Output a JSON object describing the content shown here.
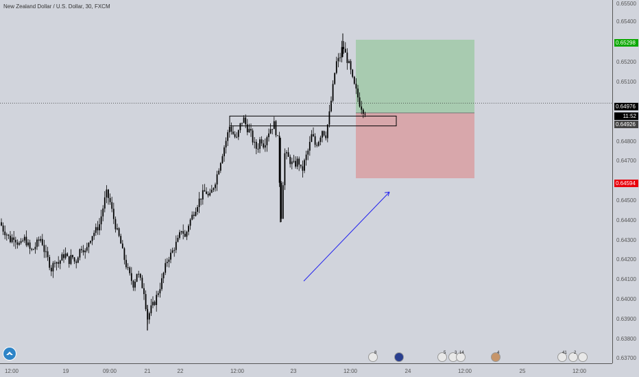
{
  "header": {
    "title": "New Zealand Dollar / U.S. Dollar, 30, FXCM"
  },
  "price_axis": {
    "ticks": [
      "0.65500",
      "0.65400",
      "0.65200",
      "0.65100",
      "0.64800",
      "0.64700",
      "0.64500",
      "0.64400",
      "0.64300",
      "0.64200",
      "0.64100",
      "0.64000",
      "0.63900",
      "0.63800",
      "0.63700"
    ],
    "tags": {
      "take_profit": "0.65298",
      "current": "0.64976",
      "countdown": "11:52",
      "entry": "0.64926",
      "stop_loss": "0.64594"
    }
  },
  "time_axis": {
    "labels": [
      "12:00",
      "19",
      "09:00",
      "21",
      "22",
      "12:00",
      "23",
      "12:00",
      "24",
      "12:00",
      "25",
      "12:00"
    ]
  },
  "events": {
    "e1": "8",
    "e3": "5",
    "e4": "3",
    "e5": "14",
    "e6": "4",
    "e7": "41",
    "e8": "2"
  },
  "colors": {
    "background": "#d1d4dc",
    "candle": "#000000",
    "take_profit_zone": "#a8cbb0",
    "stop_loss_zone": "#d8a7ab",
    "take_profit_tag": "#0ba800",
    "stop_loss_tag": "#e8000b",
    "price_tag": "#000000",
    "arrow": "#2222ee"
  },
  "chart_data": {
    "type": "candlestick",
    "instrument": "New Zealand Dollar / U.S. Dollar",
    "timeframe": "30",
    "source": "FXCM",
    "ylim": [
      0.637,
      0.6555
    ],
    "x_labels": [
      "12:00",
      "19",
      "09:00",
      "21",
      "22",
      "12:00",
      "23",
      "12:00",
      "24",
      "12:00",
      "25",
      "12:00"
    ],
    "close_path": [
      [
        0,
        0.6437
      ],
      [
        5,
        0.6433
      ],
      [
        10,
        0.6431
      ],
      [
        15,
        0.6428
      ],
      [
        20,
        0.643
      ],
      [
        25,
        0.6427
      ],
      [
        30,
        0.6425
      ],
      [
        35,
        0.6429
      ],
      [
        40,
        0.6426
      ],
      [
        45,
        0.6422
      ],
      [
        50,
        0.6424
      ],
      [
        55,
        0.6427
      ],
      [
        60,
        0.6429
      ],
      [
        65,
        0.6422
      ],
      [
        70,
        0.6418
      ],
      [
        75,
        0.6413
      ],
      [
        80,
        0.6418
      ],
      [
        85,
        0.6416
      ],
      [
        90,
        0.6419
      ],
      [
        95,
        0.6421
      ],
      [
        100,
        0.6417
      ],
      [
        105,
        0.642
      ],
      [
        110,
        0.6416
      ],
      [
        115,
        0.6422
      ],
      [
        120,
        0.6425
      ],
      [
        125,
        0.6421
      ],
      [
        130,
        0.6428
      ],
      [
        135,
        0.6431
      ],
      [
        140,
        0.6433
      ],
      [
        145,
        0.6436
      ],
      [
        150,
        0.6444
      ],
      [
        155,
        0.6452
      ],
      [
        160,
        0.6448
      ],
      [
        165,
        0.644
      ],
      [
        170,
        0.6433
      ],
      [
        175,
        0.6428
      ],
      [
        180,
        0.642
      ],
      [
        185,
        0.6414
      ],
      [
        190,
        0.6409
      ],
      [
        195,
        0.6405
      ],
      [
        200,
        0.6412
      ],
      [
        205,
        0.6407
      ],
      [
        210,
        0.6402
      ],
      [
        215,
        0.6388
      ],
      [
        220,
        0.6393
      ],
      [
        225,
        0.6396
      ],
      [
        230,
        0.6401
      ],
      [
        235,
        0.6406
      ],
      [
        240,
        0.6413
      ],
      [
        245,
        0.6419
      ],
      [
        250,
        0.6421
      ],
      [
        255,
        0.6425
      ],
      [
        260,
        0.6428
      ],
      [
        265,
        0.6434
      ],
      [
        270,
        0.6429
      ],
      [
        275,
        0.6436
      ],
      [
        280,
        0.644
      ],
      [
        285,
        0.6444
      ],
      [
        290,
        0.6448
      ],
      [
        295,
        0.6451
      ],
      [
        300,
        0.6453
      ],
      [
        305,
        0.6449
      ],
      [
        310,
        0.6454
      ],
      [
        315,
        0.6459
      ],
      [
        320,
        0.6466
      ],
      [
        325,
        0.6473
      ],
      [
        330,
        0.6479
      ],
      [
        335,
        0.6486
      ],
      [
        340,
        0.6482
      ],
      [
        345,
        0.6479
      ],
      [
        350,
        0.6486
      ],
      [
        355,
        0.649
      ],
      [
        360,
        0.6485
      ],
      [
        365,
        0.6483
      ],
      [
        370,
        0.6477
      ],
      [
        375,
        0.6474
      ],
      [
        380,
        0.648
      ],
      [
        385,
        0.6476
      ],
      [
        390,
        0.6482
      ],
      [
        395,
        0.6485
      ],
      [
        400,
        0.6487
      ],
      [
        405,
        0.6479
      ],
      [
        410,
        0.6439
      ],
      [
        415,
        0.6472
      ],
      [
        420,
        0.647
      ],
      [
        425,
        0.6467
      ],
      [
        430,
        0.6466
      ],
      [
        435,
        0.6469
      ],
      [
        440,
        0.6462
      ],
      [
        445,
        0.6469
      ],
      [
        450,
        0.6474
      ],
      [
        455,
        0.6482
      ],
      [
        460,
        0.6476
      ],
      [
        465,
        0.6479
      ],
      [
        470,
        0.6484
      ],
      [
        475,
        0.6481
      ],
      [
        480,
        0.6491
      ],
      [
        485,
        0.6504
      ],
      [
        490,
        0.6518
      ],
      [
        495,
        0.652
      ],
      [
        500,
        0.6527
      ],
      [
        505,
        0.6521
      ],
      [
        510,
        0.6516
      ],
      [
        515,
        0.6508
      ],
      [
        520,
        0.6503
      ],
      [
        525,
        0.6497
      ],
      [
        530,
        0.6494
      ],
      [
        535,
        0.6493
      ]
    ],
    "annotations": {
      "horizontal_line": 0.64976,
      "rectangle": {
        "x_from": 335,
        "x_to": 578,
        "y_from": 0.6486,
        "y_to": 0.6491
      },
      "position": {
        "take_profit": 0.65298,
        "entry": 0.64926,
        "stop_loss": 0.64594,
        "x_from": 519,
        "x_to": 692
      },
      "arrow": {
        "x_from": 443,
        "x_to": 568,
        "y_from": 0.64071,
        "y_to": 0.64524
      }
    }
  }
}
